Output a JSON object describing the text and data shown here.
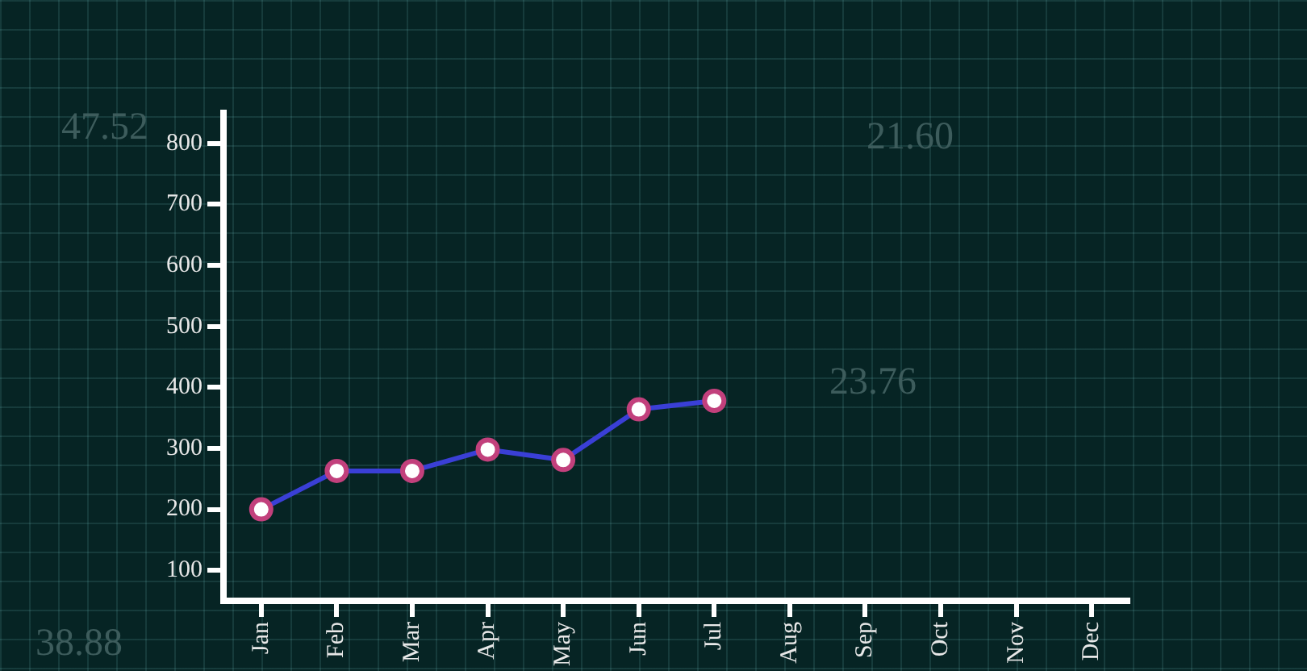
{
  "chart_data": {
    "type": "line",
    "categories": [
      "Jan",
      "Feb",
      "Mar",
      "Apr",
      "May",
      "Jun",
      "Jul",
      "Aug",
      "Sep",
      "Oct",
      "Nov",
      "Dec"
    ],
    "series": [
      {
        "color": "#3a3fd6",
        "values": [
          200,
          263,
          263,
          298,
          281,
          364,
          378,
          null,
          null,
          null,
          null,
          null
        ]
      }
    ],
    "ylim": [
      50,
      850
    ],
    "yticks": [
      100,
      200,
      300,
      400,
      500,
      600,
      700,
      800
    ],
    "grid": false,
    "legend": false,
    "marker": "circle",
    "line_style": "solid",
    "annotations": [
      "47.52",
      "21.60",
      "23.76",
      "38.88"
    ]
  }
}
